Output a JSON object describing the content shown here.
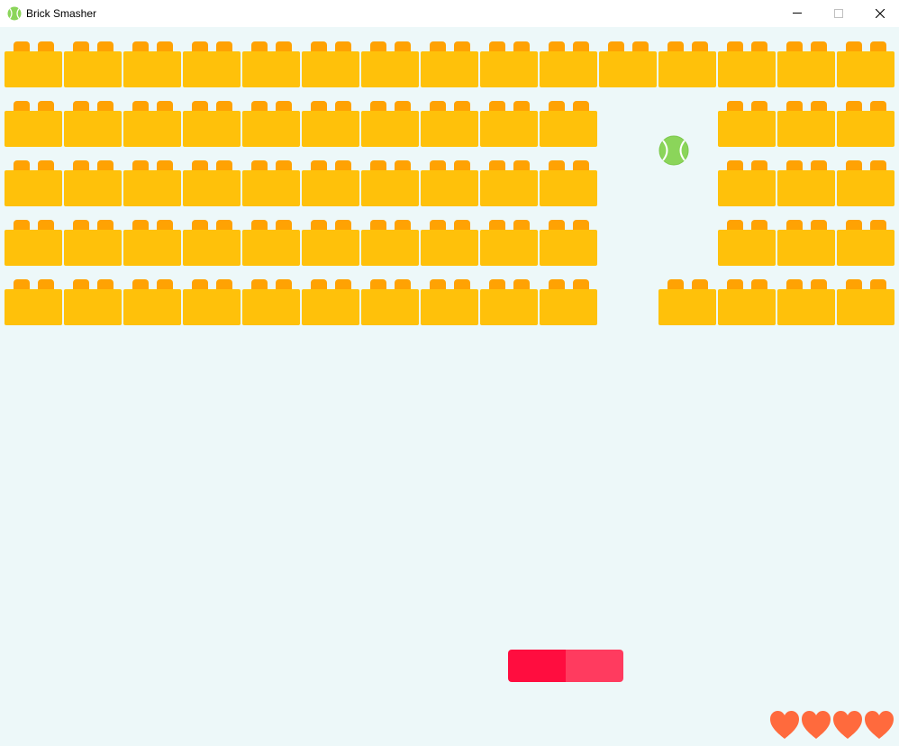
{
  "window": {
    "title": "Brick Smasher",
    "icon": "tennis-ball-icon",
    "controls": [
      "minimize-icon",
      "maximize-icon",
      "close-icon"
    ]
  },
  "colors": {
    "background": "#edf8f9",
    "brick": "#ffc10a",
    "brick_stud": "#ffa203",
    "paddle_left": "#ff0d3f",
    "paddle_right": "#ff3b5f",
    "ball": "#8bd55a",
    "heart": "#ff6a3d"
  },
  "bricks": {
    "columns": 15,
    "rows": [
      [
        1,
        1,
        1,
        1,
        1,
        1,
        1,
        1,
        1,
        1,
        1,
        1,
        1,
        1,
        1
      ],
      [
        1,
        1,
        1,
        1,
        1,
        1,
        1,
        1,
        1,
        1,
        0,
        0,
        1,
        1,
        1
      ],
      [
        1,
        1,
        1,
        1,
        1,
        1,
        1,
        1,
        1,
        1,
        0,
        0,
        1,
        1,
        1
      ],
      [
        1,
        1,
        1,
        1,
        1,
        1,
        1,
        1,
        1,
        1,
        0,
        0,
        1,
        1,
        1
      ],
      [
        1,
        1,
        1,
        1,
        1,
        1,
        1,
        1,
        1,
        1,
        0,
        1,
        1,
        1,
        1
      ]
    ]
  },
  "lives": 4
}
